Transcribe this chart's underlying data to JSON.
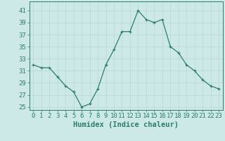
{
  "x": [
    0,
    1,
    2,
    3,
    4,
    5,
    6,
    7,
    8,
    9,
    10,
    11,
    12,
    13,
    14,
    15,
    16,
    17,
    18,
    19,
    20,
    21,
    22,
    23
  ],
  "y": [
    32,
    31.5,
    31.5,
    30,
    28.5,
    27.5,
    25,
    25.5,
    28,
    32,
    34.5,
    37.5,
    37.5,
    41,
    39.5,
    39,
    39.5,
    35,
    34,
    32,
    31,
    29.5,
    28.5,
    28
  ],
  "line_color": "#2e7d6e",
  "marker": "+",
  "marker_color": "#2e7d6e",
  "bg_color": "#cce9e7",
  "grid_color": "#b8d8d5",
  "xlabel": "Humidex (Indice chaleur)",
  "xlabel_fontsize": 7.5,
  "ylabel_ticks": [
    25,
    27,
    29,
    31,
    33,
    35,
    37,
    39,
    41
  ],
  "xlim": [
    -0.5,
    23.5
  ],
  "ylim": [
    24.5,
    42.5
  ],
  "tick_fontsize": 6.5,
  "axis_color": "#2e7d6e",
  "line_width": 0.9,
  "marker_size": 3.5
}
